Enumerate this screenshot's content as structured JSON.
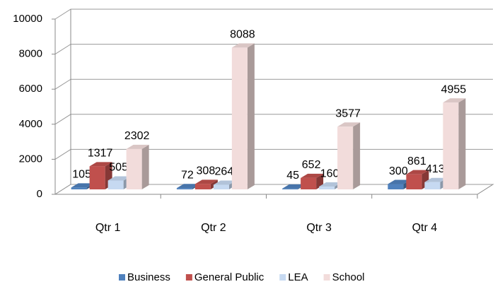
{
  "chart_data": {
    "type": "bar3d",
    "categories": [
      "Qtr 1",
      "Qtr 2",
      "Qtr 3",
      "Qtr 4"
    ],
    "series": [
      {
        "name": "Business",
        "color": "#4f81bd",
        "values": [
          105,
          72,
          45,
          300
        ]
      },
      {
        "name": "General Public",
        "color": "#c0504d",
        "values": [
          1317,
          308,
          652,
          861
        ]
      },
      {
        "name": "LEA",
        "color": "#c6d9f1",
        "values": [
          505,
          264,
          160,
          413
        ]
      },
      {
        "name": "School",
        "color": "#f2dcdb",
        "values": [
          2302,
          8088,
          3577,
          4955
        ]
      }
    ],
    "ylim": [
      0,
      10000
    ],
    "yticks": [
      0,
      2000,
      4000,
      6000,
      8000,
      10000
    ],
    "grid": true,
    "legend": "bottom"
  }
}
